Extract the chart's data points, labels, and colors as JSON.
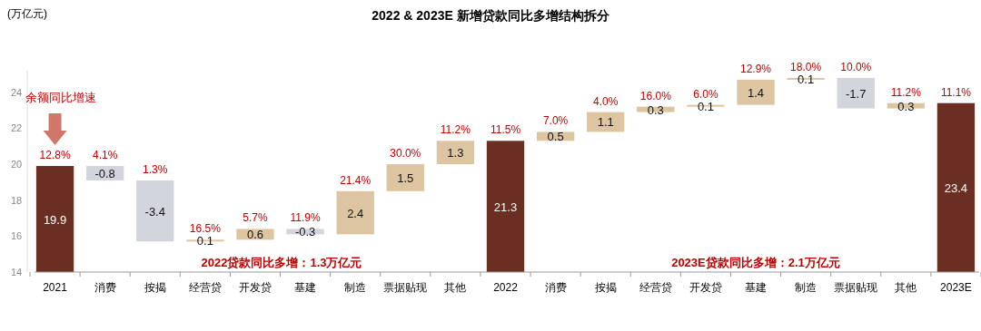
{
  "chart_data": {
    "type": "bar",
    "title": "2022 & 2023E 新增贷款同比多增结构拆分",
    "ylabel": "(万亿元)",
    "categories": [
      "2021",
      "消费",
      "按揭",
      "经营贷",
      "开发贷",
      "基建",
      "制造",
      "票据贴现",
      "其他",
      "2022",
      "消费",
      "按揭",
      "经营贷",
      "开发贷",
      "基建",
      "制造",
      "票据贴现",
      "其他",
      "2023E"
    ],
    "values": [
      19.9,
      -0.8,
      -3.4,
      0.1,
      0.6,
      -0.3,
      2.4,
      1.5,
      1.3,
      21.3,
      0.5,
      1.1,
      0.3,
      0.1,
      1.4,
      0.1,
      -1.7,
      0.3,
      23.4
    ],
    "base": [
      null,
      19.9,
      19.1,
      15.7,
      15.8,
      16.4,
      16.1,
      18.5,
      20.0,
      null,
      21.3,
      21.8,
      22.9,
      23.2,
      23.3,
      24.7,
      24.8,
      23.1,
      null
    ],
    "colors": [
      "#6b2e22",
      "#d3d5dc",
      "#d3d5dc",
      "#dcc5a0",
      "#dcc5a0",
      "#d3d5dc",
      "#dcc5a0",
      "#dcc5a0",
      "#dcc5a0",
      "#6b2e22",
      "#dcc5a0",
      "#dcc5a0",
      "#dcc5a0",
      "#dcc5a0",
      "#dcc5a0",
      "#dcc5a0",
      "#d3d5dc",
      "#dcc5a0",
      "#6b2e22"
    ],
    "data_labels": true,
    "ylim": [
      14,
      25.2
    ],
    "yticks": [
      14,
      16,
      18,
      20,
      22,
      24
    ],
    "annotations": [
      "12.8%",
      "4.1%",
      "1.3%",
      "16.5%",
      "5.7%",
      "11.9%",
      "21.4%",
      "30.0%",
      "11.2%",
      "11.5%",
      "7.0%",
      "4.0%",
      "16.0%",
      "6.0%",
      "12.9%",
      "18.0%",
      "10.0%",
      "11.2%",
      "11.1%",
      "余额同比增速",
      "2022贷款同比多增：1.3万亿元",
      "2023E贷款同比多增：2.1万亿元"
    ]
  }
}
